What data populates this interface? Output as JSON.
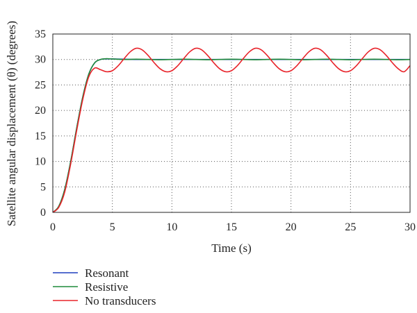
{
  "chart_data": {
    "type": "line",
    "xlabel": "Time (s)",
    "ylabel": "Satellite angular displacement (θ) (degrees)",
    "xlim": [
      0,
      30
    ],
    "ylim": [
      0,
      35
    ],
    "xticks": [
      0,
      5,
      10,
      15,
      20,
      25,
      30
    ],
    "yticks": [
      0,
      5,
      10,
      15,
      20,
      25,
      30,
      35
    ],
    "grid": true,
    "legend_position": "bottom-left",
    "series": [
      {
        "name": "Resonant",
        "color": "#1f3fbf",
        "x": [
          0,
          0.5,
          1,
          1.5,
          2,
          2.5,
          3,
          3.5,
          4,
          4.5,
          5,
          6,
          7,
          8,
          9,
          10,
          12,
          14,
          16,
          18,
          20,
          22,
          24,
          26,
          28,
          30
        ],
        "y": [
          0,
          1.2,
          4.5,
          10,
          16.5,
          22.5,
          27,
          29.3,
          30.0,
          30.1,
          30.1,
          30.05,
          30.0,
          30.0,
          30.0,
          30.0,
          30.0,
          30.0,
          30.0,
          30.0,
          30.0,
          30.0,
          30.0,
          30.0,
          30.0,
          30.0
        ]
      },
      {
        "name": "Resistive",
        "color": "#1f8a3a",
        "x": [
          0,
          0.5,
          1,
          1.5,
          2,
          2.5,
          3,
          3.5,
          4,
          4.5,
          5,
          6,
          7,
          8,
          9,
          10,
          11,
          12,
          13,
          14,
          15,
          16,
          17,
          18,
          19,
          20,
          21,
          22,
          23,
          24,
          25,
          26,
          27,
          28,
          29,
          30
        ],
        "y": [
          0,
          1.2,
          4.5,
          10,
          16.5,
          22.5,
          27,
          29.3,
          30.0,
          30.15,
          30.1,
          30.0,
          30.05,
          30.0,
          29.95,
          30.0,
          30.05,
          30.0,
          29.95,
          30.0,
          30.05,
          30.0,
          29.95,
          30.0,
          30.05,
          30.0,
          29.95,
          30.0,
          30.05,
          30.0,
          29.95,
          30.0,
          30.05,
          30.0,
          29.95,
          30.0
        ]
      },
      {
        "name": "No transducers",
        "color": "#e8232a",
        "x": [
          0,
          0.5,
          1,
          1.5,
          2,
          2.5,
          3,
          3.5,
          4,
          4.5,
          5,
          5.5,
          6,
          6.5,
          7,
          7.5,
          8,
          8.5,
          9,
          9.5,
          10,
          10.5,
          11,
          11.5,
          12,
          12.5,
          13,
          13.5,
          14,
          14.5,
          15,
          15.5,
          16,
          16.5,
          17,
          17.5,
          18,
          18.5,
          19,
          19.5,
          20,
          20.5,
          21,
          21.5,
          22,
          22.5,
          23,
          23.5,
          24,
          24.5,
          25,
          25.5,
          26,
          26.5,
          27,
          27.5,
          28,
          28.5,
          29,
          29.5,
          30
        ],
        "y": [
          0,
          1.0,
          4.0,
          9.5,
          16.0,
          22.0,
          26.5,
          28.3,
          28.0,
          27.6,
          27.8,
          28.8,
          30.2,
          31.5,
          32.2,
          31.9,
          30.8,
          29.4,
          28.2,
          27.6,
          27.8,
          28.8,
          30.2,
          31.5,
          32.2,
          31.9,
          30.8,
          29.4,
          28.2,
          27.6,
          27.8,
          28.8,
          30.2,
          31.5,
          32.2,
          31.9,
          30.8,
          29.4,
          28.2,
          27.6,
          27.8,
          28.8,
          30.2,
          31.5,
          32.2,
          31.9,
          30.8,
          29.4,
          28.2,
          27.6,
          27.8,
          28.8,
          30.2,
          31.5,
          32.2,
          31.9,
          30.8,
          29.4,
          28.2,
          27.6,
          28.8
        ]
      }
    ]
  }
}
